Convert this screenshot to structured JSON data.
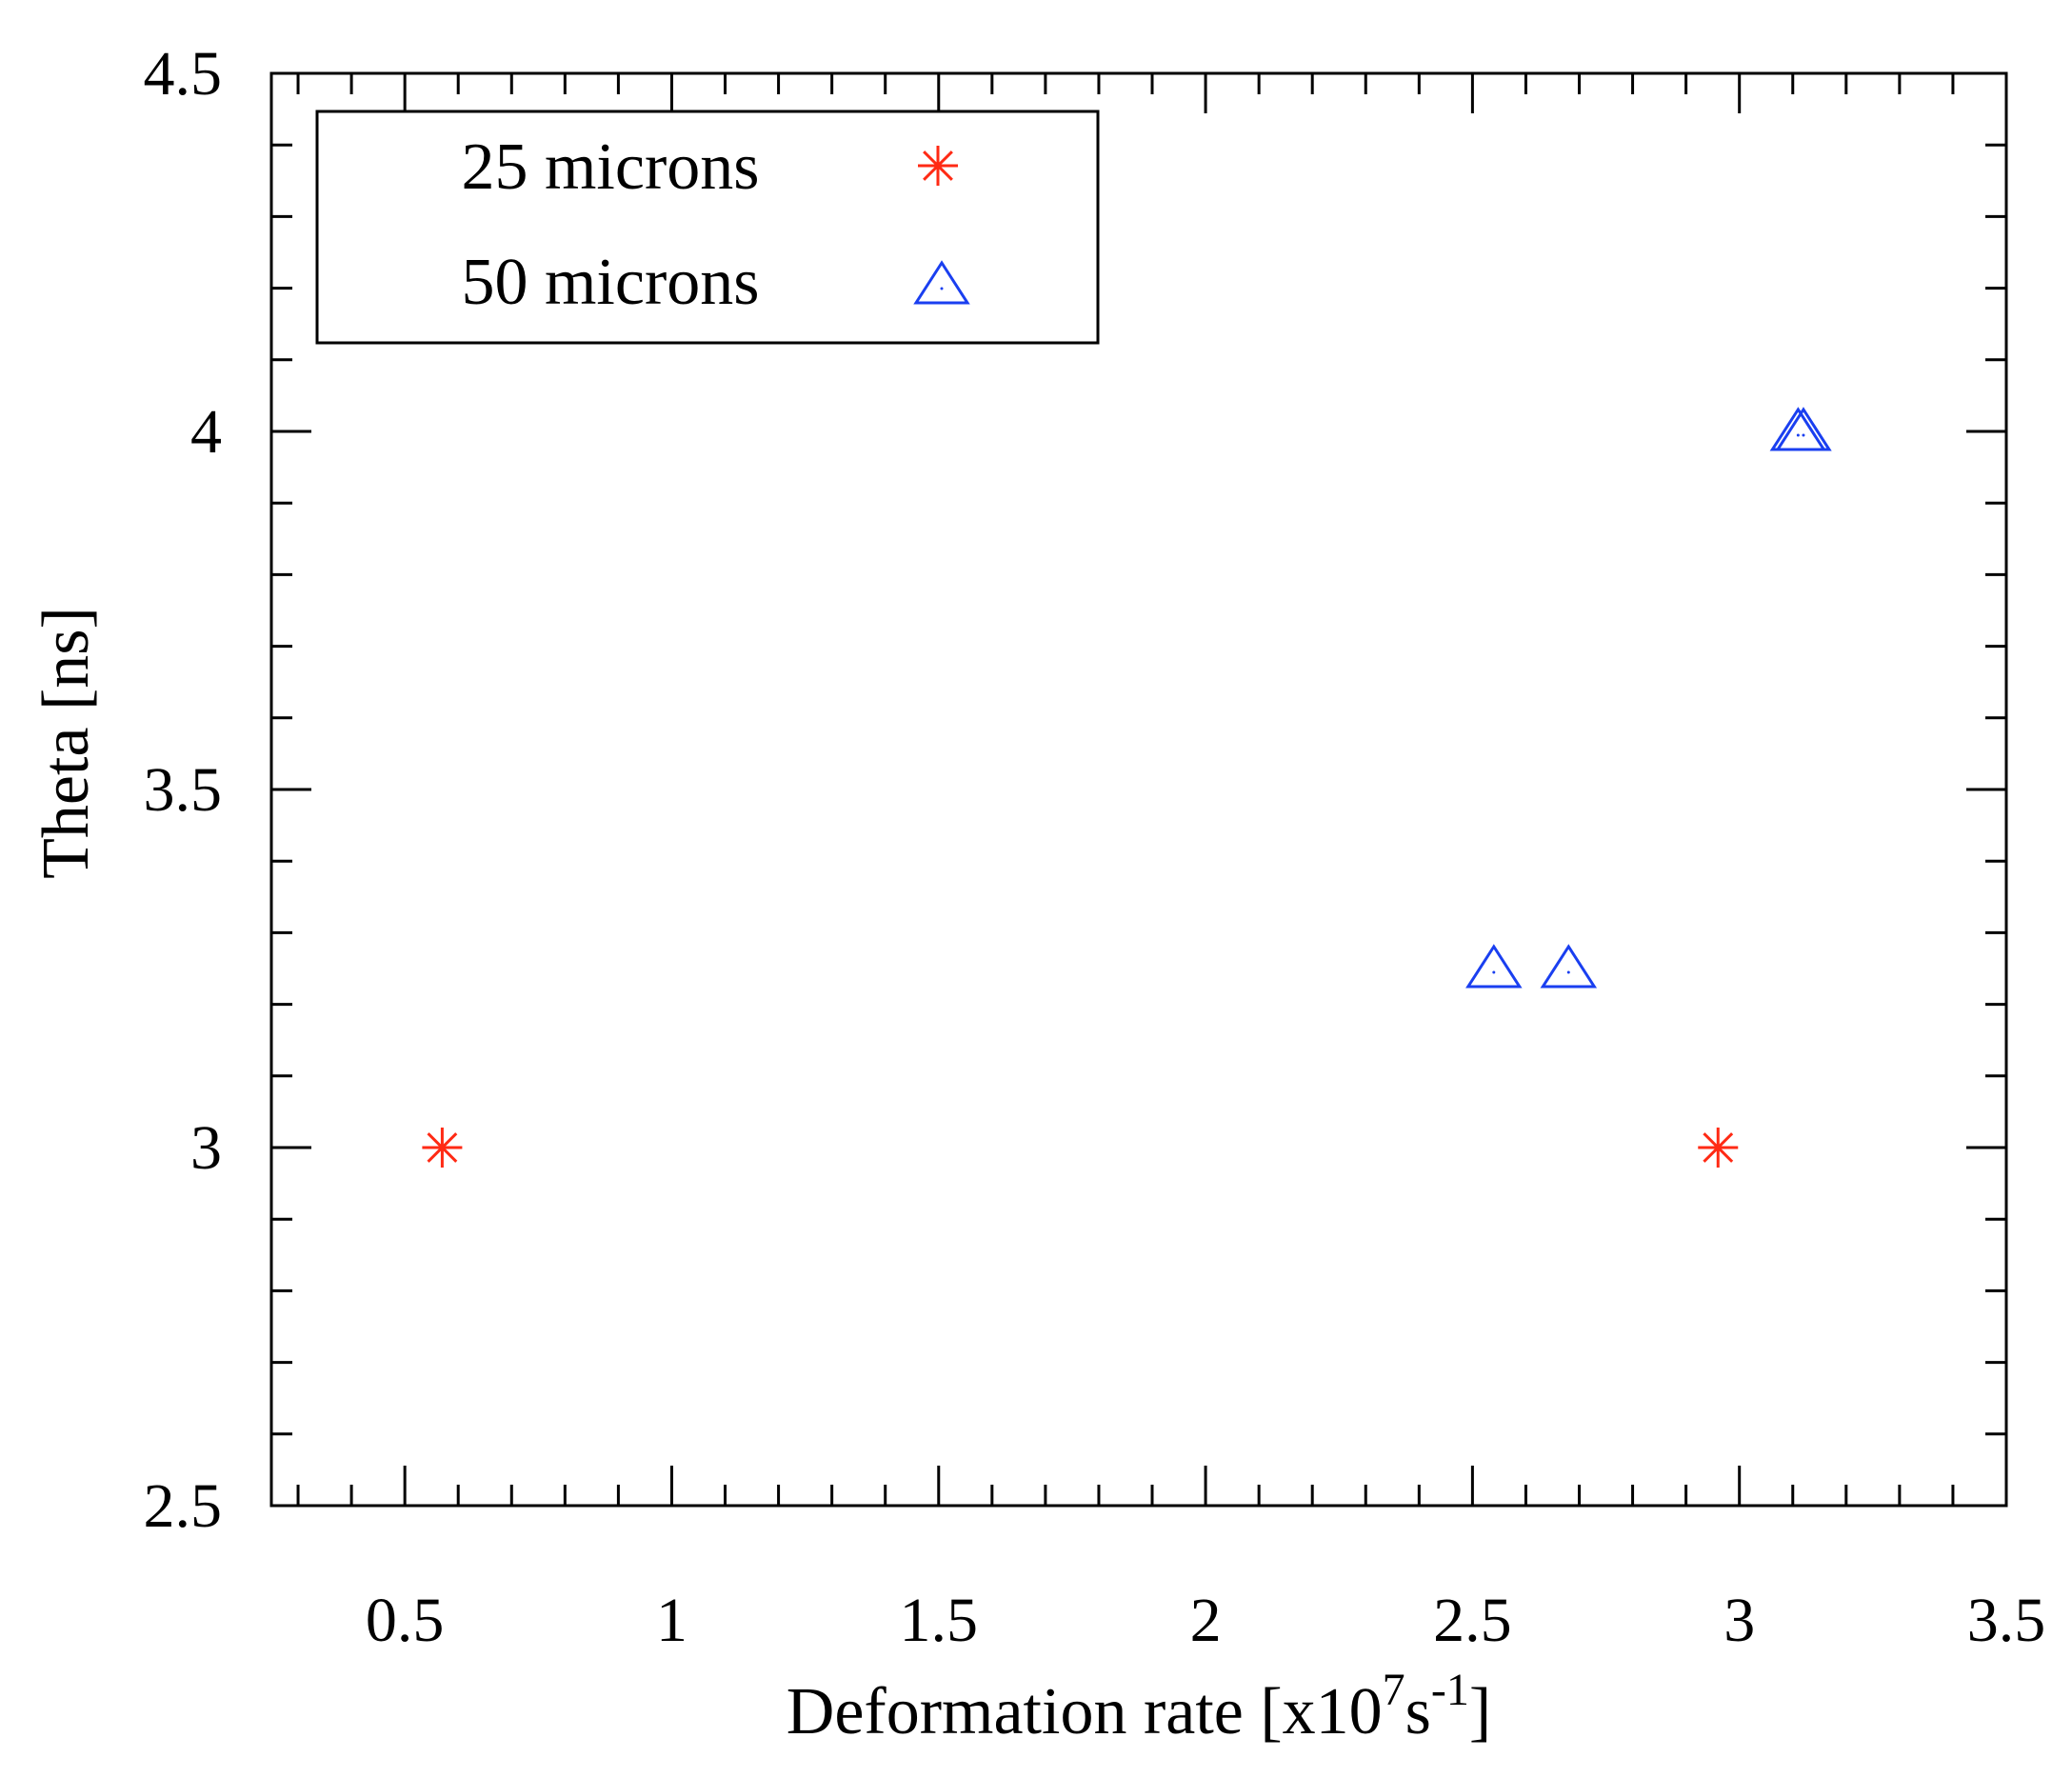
{
  "chart_data": {
    "type": "scatter",
    "title": "",
    "xlabel": "Deformation rate [x10",
    "xlabel_exponent": "7",
    "xlabel_unit": "s",
    "xlabel_unit_exponent": "-1",
    "xlabel_close": "]",
    "ylabel": "Theta [ns]",
    "xlim": [
      0.25,
      3.5
    ],
    "ylim": [
      2.5,
      4.5
    ],
    "x_major_ticks": [
      0.5,
      1,
      1.5,
      2,
      2.5,
      3,
      3.5
    ],
    "x_tick_labels": [
      "0.5",
      "1",
      "1.5",
      "2",
      "2.5",
      "3",
      "3.5"
    ],
    "x_minor_step": 0.1,
    "y_major_ticks": [
      2.5,
      3,
      3.5,
      4,
      4.5
    ],
    "y_tick_labels": [
      "2.5",
      "3",
      "3.5",
      "4",
      "4.5"
    ],
    "y_minor_step": 0.1,
    "legend_position": "top-left",
    "series": [
      {
        "name": "25 microns",
        "marker": "asterisk",
        "color": "#ff2a14",
        "points": [
          {
            "x": 0.57,
            "y": 3.0
          },
          {
            "x": 2.96,
            "y": 3.0
          }
        ]
      },
      {
        "name": "50 microns",
        "marker": "triangle",
        "color": "#1a3ff0",
        "points": [
          {
            "x": 2.54,
            "y": 3.25
          },
          {
            "x": 2.68,
            "y": 3.25
          },
          {
            "x": 3.11,
            "y": 4.0
          },
          {
            "x": 3.12,
            "y": 4.0
          }
        ]
      }
    ]
  }
}
